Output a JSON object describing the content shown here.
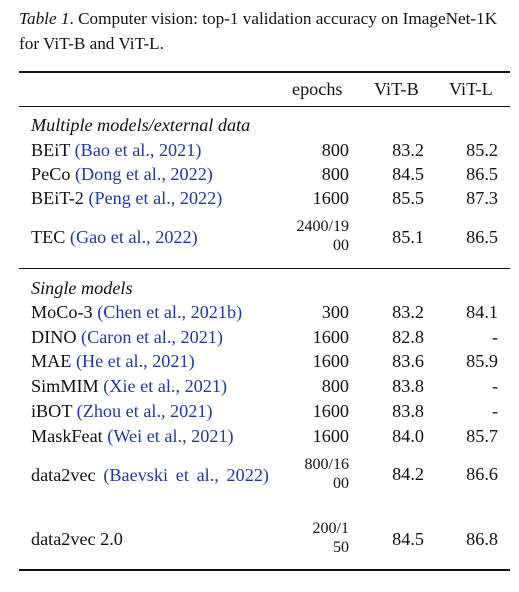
{
  "caption": {
    "label": "Table 1",
    "text": ". Computer vision: top-1 validation accuracy on ImageNet-1K for ViT-B and ViT-L."
  },
  "columns": [
    "epochs",
    "ViT-B",
    "ViT-L"
  ],
  "sections": [
    {
      "title": "Multiple models/external data",
      "rows": [
        {
          "name": "BEiT",
          "cite": "(Bao et al., 2021)",
          "epochs": "800",
          "vitb": "83.2",
          "vitl": "85.2"
        },
        {
          "name": "PeCo",
          "cite": "(Dong et al., 2022)",
          "epochs": "800",
          "vitb": "84.5",
          "vitl": "86.5"
        },
        {
          "name": "BEiT-2",
          "cite": "(Peng et al., 2022)",
          "epochs": "1600",
          "vitb": "85.5",
          "vitl": "87.3"
        },
        {
          "name": "TEC",
          "cite": "(Gao et al., 2022)",
          "epochs": "2400/1900",
          "vitb": "85.1",
          "vitl": "86.5"
        }
      ]
    },
    {
      "title": "Single models",
      "rows": [
        {
          "name": "MoCo-3",
          "cite": "(Chen et al., 2021b)",
          "epochs": "300",
          "vitb": "83.2",
          "vitl": "84.1"
        },
        {
          "name": "DINO",
          "cite": "(Caron et al., 2021)",
          "epochs": "1600",
          "vitb": "82.8",
          "vitl": "-"
        },
        {
          "name": "MAE",
          "cite": "(He et al., 2021)",
          "epochs": "1600",
          "vitb": "83.6",
          "vitl": "85.9"
        },
        {
          "name": "SimMIM",
          "cite": "(Xie et al., 2021)",
          "epochs": "800",
          "vitb": "83.8",
          "vitl": "-"
        },
        {
          "name": "iBOT",
          "cite": "(Zhou et al., 2021)",
          "epochs": "1600",
          "vitb": "83.8",
          "vitl": "-"
        },
        {
          "name": "MaskFeat",
          "cite": "(Wei et al., 2021)",
          "epochs": "1600",
          "vitb": "84.0",
          "vitl": "85.7"
        },
        {
          "name": "data2vec",
          "cite": "(Baevski et al., 2022)",
          "epochs": "800/1600",
          "vitb": "84.2",
          "vitl": "86.6"
        },
        {
          "name": "data2vec 2.0",
          "cite": "",
          "epochs": "200/150",
          "vitb": "84.5",
          "vitl": "86.8"
        }
      ]
    }
  ]
}
